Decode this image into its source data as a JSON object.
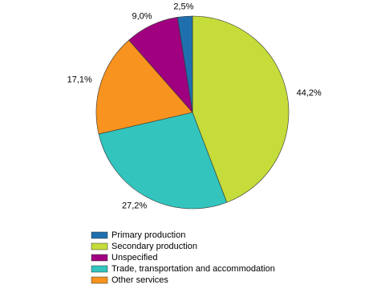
{
  "chart_data": {
    "type": "pie",
    "categories": [
      "Primary production",
      "Secondary production",
      "Unspecified",
      "Trade, transportation and accommodation",
      "Other services"
    ],
    "values": [
      2.5,
      44.2,
      9.0,
      27.2,
      17.1
    ],
    "value_labels": [
      "2,5%",
      "44,2%",
      "9,0%",
      "27,2%",
      "17,1%"
    ],
    "colors": [
      "#1f6fae",
      "#c5dc3a",
      "#a0007f",
      "#33c4be",
      "#f7931e"
    ],
    "legend": "bottom"
  }
}
